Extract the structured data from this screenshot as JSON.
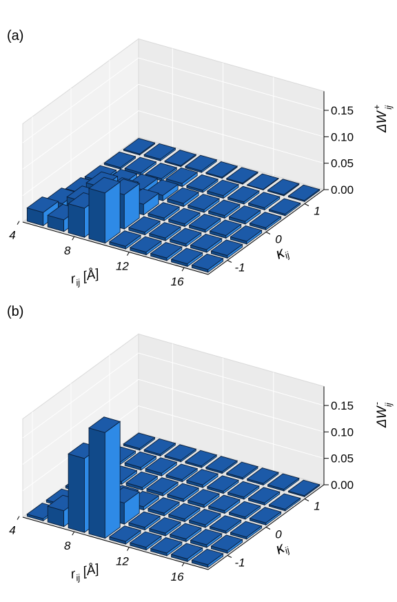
{
  "chart_data": [
    {
      "type": "bar3d",
      "panel_label": "(a)",
      "xlabel": "r",
      "xlabel_sub": "ij",
      "xlabel_unit": "[Å]",
      "ylabel": "κ",
      "ylabel_sub": "ij",
      "zlabel": "ΔW",
      "zlabel_sup": "+",
      "zlabel_sub": "ij",
      "x_ticks": [
        "4",
        "8",
        "12",
        "16"
      ],
      "y_ticks": [
        "-1",
        "0",
        "1"
      ],
      "z_ticks": [
        "0.00",
        "0.05",
        "0.10",
        "0.15"
      ],
      "x_bins": [
        5,
        6.5,
        8,
        9.5,
        11,
        12.5,
        14,
        15.5,
        17
      ],
      "y_bins": [
        -1.25,
        -0.75,
        -0.25,
        0.25,
        0.75,
        1.25
      ],
      "zlim": [
        0,
        0.18
      ],
      "values": [
        [
          0.025,
          0.022,
          0.055,
          0.095,
          0.005,
          0.005,
          0.005,
          0.005,
          0.005
        ],
        [
          0.015,
          0.03,
          0.018,
          0.065,
          0.005,
          0.005,
          0.005,
          0.005,
          0.005
        ],
        [
          0.008,
          0.03,
          0.03,
          0.02,
          0.005,
          0.005,
          0.005,
          0.005,
          0.005
        ],
        [
          0.004,
          0.008,
          0.01,
          0.01,
          0.006,
          0.005,
          0.005,
          0.005,
          0.004
        ],
        [
          0.003,
          0.004,
          0.004,
          0.006,
          0.004,
          0.005,
          0.004,
          0.004,
          0.003
        ],
        [
          0.002,
          0.003,
          0.002,
          0.003,
          0.002,
          0.002,
          0.001,
          0.002,
          0.002
        ]
      ]
    },
    {
      "type": "bar3d",
      "panel_label": "(b)",
      "xlabel": "r",
      "xlabel_sub": "ij",
      "xlabel_unit": "[Å]",
      "ylabel": "κ",
      "ylabel_sub": "ij",
      "zlabel": "ΔW",
      "zlabel_sup": "-",
      "zlabel_sub": "ij",
      "x_ticks": [
        "4",
        "8",
        "12",
        "16"
      ],
      "y_ticks": [
        "-1",
        "0",
        "1"
      ],
      "z_ticks": [
        "0.00",
        "0.05",
        "0.10",
        "0.15"
      ],
      "x_bins": [
        5,
        6.5,
        8,
        9.5,
        11,
        12.5,
        14,
        15.5,
        17
      ],
      "y_bins": [
        -1.25,
        -0.75,
        -0.25,
        0.25,
        0.75,
        1.25
      ],
      "zlim": [
        0,
        0.18
      ],
      "values": [
        [
          0.004,
          0.03,
          0.14,
          0.2,
          0.005,
          0.005,
          0.005,
          0.005,
          0.005
        ],
        [
          0.004,
          0.012,
          0.025,
          0.04,
          0.005,
          0.005,
          0.005,
          0.005,
          0.005
        ],
        [
          0.004,
          0.006,
          0.006,
          0.006,
          0.005,
          0.005,
          0.005,
          0.004,
          0.004
        ],
        [
          0.004,
          0.005,
          0.005,
          0.005,
          0.005,
          0.005,
          0.005,
          0.004,
          0.004
        ],
        [
          0.004,
          0.005,
          0.005,
          0.004,
          0.005,
          0.004,
          0.004,
          0.004,
          0.003
        ],
        [
          0.003,
          0.003,
          0.003,
          0.003,
          0.003,
          0.003,
          0.003,
          0.003,
          0.002
        ]
      ]
    }
  ]
}
